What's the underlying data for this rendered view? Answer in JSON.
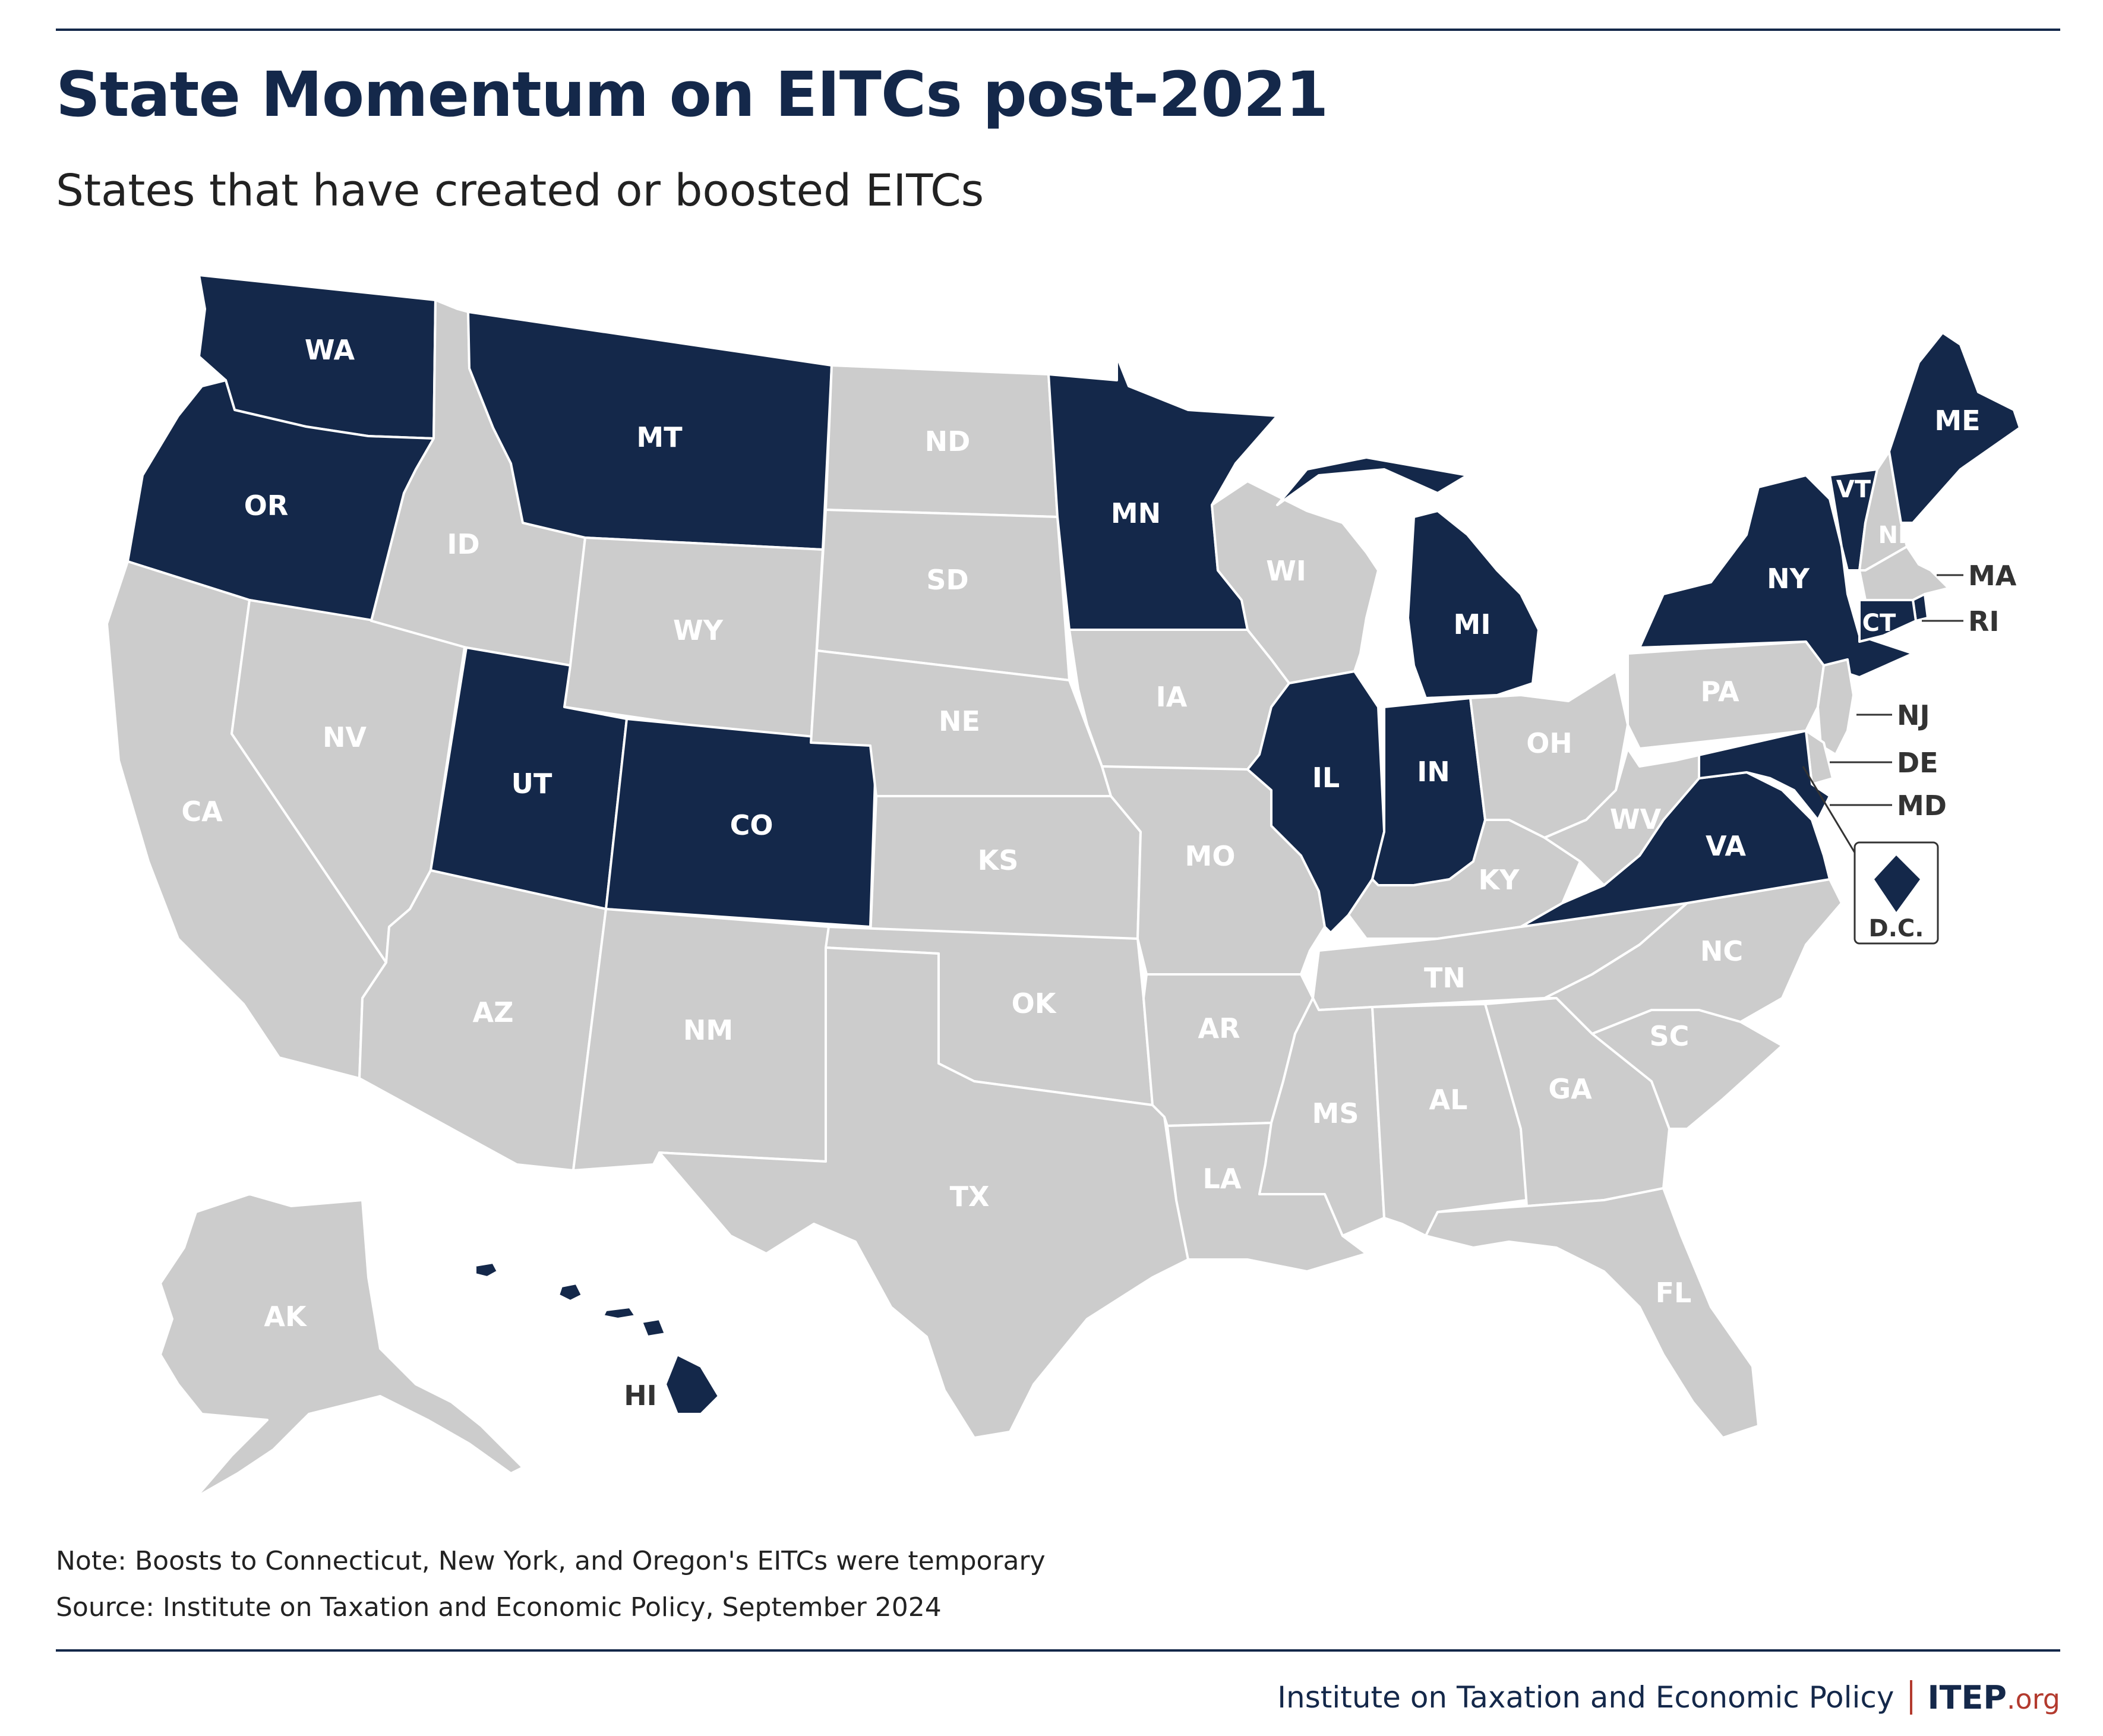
{
  "header": {
    "title": "State Momentum on EITCs post-2021",
    "subtitle": "States that have created or boosted EITCs"
  },
  "legend_colors": {
    "created_or_boosted": "#14284a",
    "other": "#cccccc",
    "border": "#ffffff",
    "label_on_dark": "#ffffff",
    "label_on_light": "#ffffff",
    "callout_label": "#333333"
  },
  "map": {
    "states": [
      {
        "id": "WA",
        "label": "WA",
        "highlight": true
      },
      {
        "id": "OR",
        "label": "OR",
        "highlight": true
      },
      {
        "id": "CA",
        "label": "CA",
        "highlight": false
      },
      {
        "id": "NV",
        "label": "NV",
        "highlight": false
      },
      {
        "id": "ID",
        "label": "ID",
        "highlight": false
      },
      {
        "id": "MT",
        "label": "MT",
        "highlight": true
      },
      {
        "id": "WY",
        "label": "WY",
        "highlight": false
      },
      {
        "id": "UT",
        "label": "UT",
        "highlight": true
      },
      {
        "id": "CO",
        "label": "CO",
        "highlight": true
      },
      {
        "id": "AZ",
        "label": "AZ",
        "highlight": false
      },
      {
        "id": "NM",
        "label": "NM",
        "highlight": false
      },
      {
        "id": "ND",
        "label": "ND",
        "highlight": false
      },
      {
        "id": "SD",
        "label": "SD",
        "highlight": false
      },
      {
        "id": "NE",
        "label": "NE",
        "highlight": false
      },
      {
        "id": "KS",
        "label": "KS",
        "highlight": false
      },
      {
        "id": "OK",
        "label": "OK",
        "highlight": false
      },
      {
        "id": "TX",
        "label": "TX",
        "highlight": false
      },
      {
        "id": "MN",
        "label": "MN",
        "highlight": true
      },
      {
        "id": "IA",
        "label": "IA",
        "highlight": false
      },
      {
        "id": "MO",
        "label": "MO",
        "highlight": false
      },
      {
        "id": "AR",
        "label": "AR",
        "highlight": false
      },
      {
        "id": "LA",
        "label": "LA",
        "highlight": false
      },
      {
        "id": "WI",
        "label": "WI",
        "highlight": false
      },
      {
        "id": "IL",
        "label": "IL",
        "highlight": true
      },
      {
        "id": "MI",
        "label": "MI",
        "highlight": true
      },
      {
        "id": "IN",
        "label": "IN",
        "highlight": true
      },
      {
        "id": "OH",
        "label": "OH",
        "highlight": false
      },
      {
        "id": "KY",
        "label": "KY",
        "highlight": false
      },
      {
        "id": "TN",
        "label": "TN",
        "highlight": false
      },
      {
        "id": "MS",
        "label": "MS",
        "highlight": false
      },
      {
        "id": "AL",
        "label": "AL",
        "highlight": false
      },
      {
        "id": "GA",
        "label": "GA",
        "highlight": false
      },
      {
        "id": "FL",
        "label": "FL",
        "highlight": false
      },
      {
        "id": "SC",
        "label": "SC",
        "highlight": false
      },
      {
        "id": "NC",
        "label": "NC",
        "highlight": false
      },
      {
        "id": "VA",
        "label": "VA",
        "highlight": true
      },
      {
        "id": "WV",
        "label": "WV",
        "highlight": false
      },
      {
        "id": "PA",
        "label": "PA",
        "highlight": false
      },
      {
        "id": "NY",
        "label": "NY",
        "highlight": true
      },
      {
        "id": "VT",
        "label": "VT",
        "highlight": true
      },
      {
        "id": "NH",
        "label": "NH",
        "highlight": false
      },
      {
        "id": "ME",
        "label": "ME",
        "highlight": true
      },
      {
        "id": "MA",
        "label": "MA",
        "highlight": false
      },
      {
        "id": "RI",
        "label": "RI",
        "highlight": true
      },
      {
        "id": "CT",
        "label": "CT",
        "highlight": true
      },
      {
        "id": "NJ",
        "label": "NJ",
        "highlight": false
      },
      {
        "id": "DE",
        "label": "DE",
        "highlight": false
      },
      {
        "id": "MD",
        "label": "MD",
        "highlight": true
      },
      {
        "id": "DC",
        "label": "D.C.",
        "highlight": true
      },
      {
        "id": "AK",
        "label": "AK",
        "highlight": false
      },
      {
        "id": "HI",
        "label": "HI",
        "highlight": true
      }
    ]
  },
  "notes": {
    "note": "Note: Boosts to Connecticut, New York, and Oregon's EITCs were temporary",
    "source": "Source: Institute on Taxation and Economic Policy, September 2024"
  },
  "footer": {
    "org": "Institute on Taxation and Economic Policy",
    "logo": "ITEP",
    "logo_suffix": ".org"
  }
}
